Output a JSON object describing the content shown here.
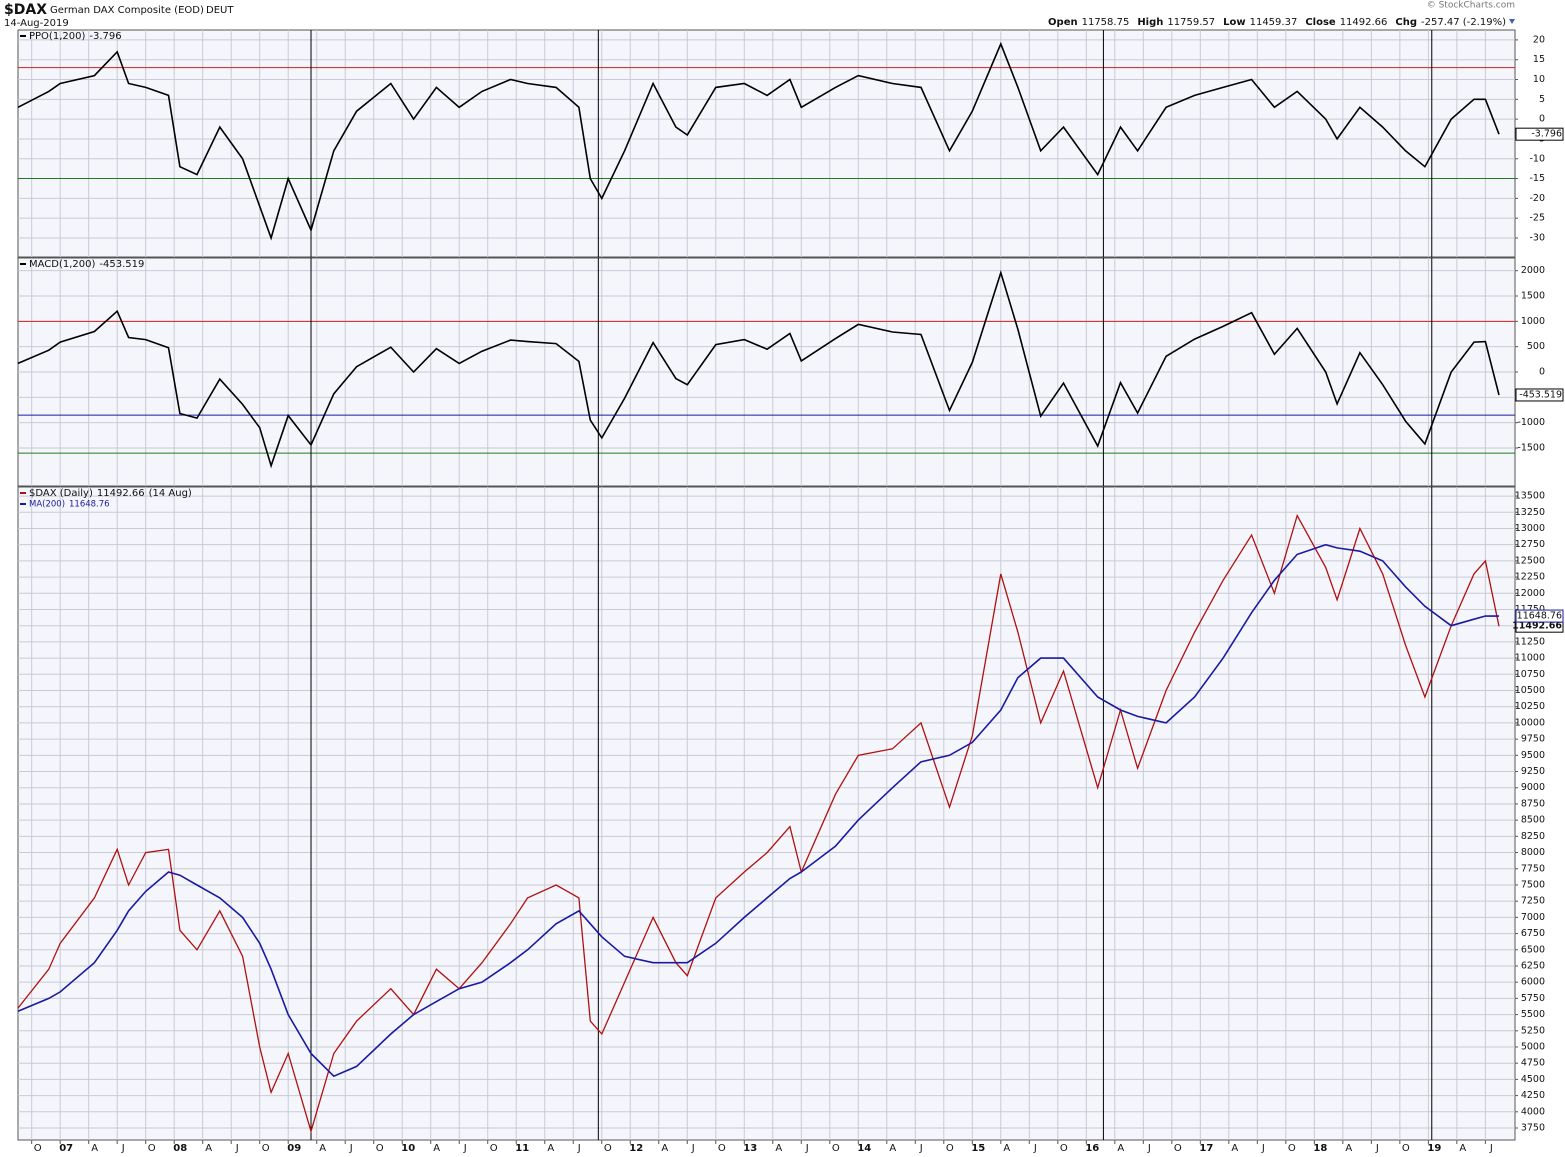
{
  "header": {
    "symbol": "$DAX",
    "name": "German DAX Composite (EOD)",
    "exchange": "DEUT",
    "date": "14-Aug-2019",
    "copyright": "© StockCharts.com",
    "quote": [
      {
        "label": "Open",
        "value": "11758.75"
      },
      {
        "label": "High",
        "value": "11759.57"
      },
      {
        "label": "Low",
        "value": "11459.37"
      },
      {
        "label": "Close",
        "value": "11492.66"
      },
      {
        "label": "Chg",
        "value": "-257.47 (-2.19%)"
      }
    ]
  },
  "chart_data": [
    {
      "type": "line",
      "x": [
        2006.63,
        2006.9,
        2007.0,
        2007.3,
        2007.5,
        2007.6,
        2007.75,
        2007.95,
        2008.05,
        2008.2,
        2008.4,
        2008.6,
        2008.75,
        2008.85,
        2009.0,
        2009.2,
        2009.4,
        2009.6,
        2009.9,
        2010.1,
        2010.3,
        2010.5,
        2010.7,
        2010.95,
        2011.1,
        2011.35,
        2011.55,
        2011.65,
        2011.75,
        2011.95,
        2012.2,
        2012.4,
        2012.5,
        2012.75,
        2013.0,
        2013.2,
        2013.4,
        2013.5,
        2013.8,
        2014.0,
        2014.3,
        2014.55,
        2014.8,
        2015.0,
        2015.25,
        2015.4,
        2015.6,
        2015.8,
        2016.1,
        2016.3,
        2016.45,
        2016.7,
        2016.95,
        2017.2,
        2017.45,
        2017.65,
        2017.85,
        2018.1,
        2018.2,
        2018.4,
        2018.6,
        2018.8,
        2018.97,
        2019.2,
        2019.4,
        2019.5,
        2019.62
      ],
      "series": [
        {
          "name": "PPO(1,200)",
          "color": "#000000",
          "values": [
            3,
            7,
            9,
            11,
            17,
            9,
            8,
            6,
            -12,
            -14,
            -2,
            -10,
            -22,
            -30,
            -15,
            -28,
            -8,
            2,
            9,
            0,
            8,
            3,
            7,
            10,
            9,
            8,
            3,
            -15,
            -20,
            -8,
            9,
            -2,
            -4,
            8,
            9,
            6,
            10,
            3,
            8,
            11,
            9,
            8,
            -8,
            2,
            19,
            8,
            -8,
            -2,
            -14,
            -2,
            -8,
            3,
            6,
            8,
            10,
            3,
            7,
            0,
            -5,
            3,
            -2,
            -8,
            -12,
            0,
            5,
            5,
            -3.796
          ]
        }
      ],
      "xlim": [
        2006.63,
        2019.76
      ],
      "ylim": [
        -34.8,
        22.5
      ],
      "yticks": [
        -30,
        -25,
        -20,
        -15,
        -10,
        -5,
        0,
        5,
        10,
        15,
        20
      ],
      "hlines": [
        {
          "value": 13,
          "color": "#d42020"
        },
        {
          "value": -15,
          "color": "#1f7a1f"
        }
      ],
      "vlines": [
        2009.2,
        2011.72,
        2016.15,
        2019.03
      ],
      "grid": true
    },
    {
      "type": "line",
      "x": [
        2006.63,
        2006.9,
        2007.0,
        2007.3,
        2007.5,
        2007.6,
        2007.75,
        2007.95,
        2008.05,
        2008.2,
        2008.4,
        2008.6,
        2008.75,
        2008.85,
        2009.0,
        2009.2,
        2009.4,
        2009.6,
        2009.9,
        2010.1,
        2010.3,
        2010.5,
        2010.7,
        2010.95,
        2011.1,
        2011.35,
        2011.55,
        2011.65,
        2011.75,
        2011.95,
        2012.2,
        2012.4,
        2012.5,
        2012.75,
        2013.0,
        2013.2,
        2013.4,
        2013.5,
        2013.8,
        2014.0,
        2014.3,
        2014.55,
        2014.8,
        2015.0,
        2015.25,
        2015.4,
        2015.6,
        2015.8,
        2016.1,
        2016.3,
        2016.45,
        2016.7,
        2016.95,
        2017.2,
        2017.45,
        2017.65,
        2017.85,
        2018.1,
        2018.2,
        2018.4,
        2018.6,
        2018.8,
        2018.97,
        2019.2,
        2019.4,
        2019.5,
        2019.62
      ],
      "series": [
        {
          "name": "MACD(1,200)",
          "color": "#000000",
          "values": [
            170,
            430,
            590,
            800,
            1200,
            680,
            640,
            480,
            -820,
            -910,
            -140,
            -640,
            -1100,
            -1850,
            -860,
            -1440,
            -430,
            105,
            490,
            0,
            460,
            170,
            410,
            630,
            600,
            560,
            210,
            -950,
            -1300,
            -520,
            580,
            -130,
            -250,
            540,
            640,
            450,
            760,
            220,
            660,
            940,
            790,
            740,
            -760,
            190,
            1960,
            840,
            -870,
            -220,
            -1460,
            -210,
            -810,
            310,
            650,
            900,
            1170,
            350,
            860,
            0,
            -630,
            380,
            -250,
            -970,
            -1420,
            0,
            590,
            600,
            -453.519
          ]
        }
      ],
      "xlim": [
        2006.63,
        2019.76
      ],
      "ylim": [
        -2250,
        2250
      ],
      "yticks": [
        -1500,
        -1000,
        -500,
        0,
        500,
        1000,
        1500,
        2000
      ],
      "hlines": [
        {
          "value": 1000,
          "color": "#d42020"
        },
        {
          "value": -850,
          "color": "#1a1aa0"
        },
        {
          "value": -1600,
          "color": "#1f7a1f"
        }
      ],
      "vlines": [
        2009.2,
        2011.72,
        2016.15,
        2019.03
      ],
      "grid": true
    },
    {
      "type": "line",
      "x": [
        2006.63,
        2006.9,
        2007.0,
        2007.3,
        2007.5,
        2007.6,
        2007.75,
        2007.95,
        2008.05,
        2008.2,
        2008.4,
        2008.6,
        2008.75,
        2008.85,
        2009.0,
        2009.2,
        2009.4,
        2009.6,
        2009.9,
        2010.1,
        2010.3,
        2010.5,
        2010.7,
        2010.95,
        2011.1,
        2011.35,
        2011.55,
        2011.65,
        2011.75,
        2011.95,
        2012.2,
        2012.4,
        2012.5,
        2012.75,
        2013.0,
        2013.2,
        2013.4,
        2013.5,
        2013.8,
        2014.0,
        2014.3,
        2014.55,
        2014.8,
        2015.0,
        2015.25,
        2015.4,
        2015.6,
        2015.8,
        2016.1,
        2016.3,
        2016.45,
        2016.7,
        2016.95,
        2017.2,
        2017.45,
        2017.65,
        2017.85,
        2018.1,
        2018.2,
        2018.4,
        2018.6,
        2018.8,
        2018.97,
        2019.2,
        2019.4,
        2019.5,
        2019.62
      ],
      "series": [
        {
          "name": "$DAX (Daily)",
          "date_label": "(14 Aug)",
          "color": "#b01010",
          "values": [
            5600,
            6200,
            6600,
            7300,
            8050,
            7500,
            8000,
            8050,
            6800,
            6500,
            7100,
            6400,
            5000,
            4300,
            4900,
            3700,
            4900,
            5400,
            5900,
            5500,
            6200,
            5900,
            6300,
            6900,
            7300,
            7500,
            7300,
            5400,
            5200,
            6000,
            7000,
            6300,
            6100,
            7300,
            7700,
            8000,
            8400,
            7700,
            8900,
            9500,
            9600,
            10000,
            8700,
            9800,
            12300,
            11400,
            10000,
            10800,
            9000,
            10200,
            9300,
            10500,
            11400,
            12200,
            12900,
            12000,
            13200,
            12400,
            11900,
            13000,
            12300,
            11200,
            10400,
            11500,
            12300,
            12500,
            11492.66
          ]
        },
        {
          "name": "MA(200)",
          "color": "#1a1aa0",
          "values": [
            5550,
            5750,
            5850,
            6300,
            6800,
            7100,
            7400,
            7700,
            7650,
            7500,
            7300,
            7000,
            6600,
            6200,
            5500,
            4900,
            4550,
            4700,
            5200,
            5500,
            5700,
            5900,
            6000,
            6300,
            6500,
            6900,
            7100,
            6900,
            6700,
            6400,
            6300,
            6300,
            6300,
            6600,
            7000,
            7300,
            7600,
            7700,
            8100,
            8500,
            9000,
            9400,
            9500,
            9700,
            10200,
            10700,
            11000,
            11000,
            10400,
            10200,
            10100,
            10000,
            10400,
            11000,
            11700,
            12200,
            12600,
            12750,
            12700,
            12650,
            12500,
            12100,
            11800,
            11500,
            11600,
            11650,
            11648.76
          ]
        }
      ],
      "xlim": [
        2006.63,
        2019.76
      ],
      "ylim": [
        3565,
        13640
      ],
      "yticks": [
        3750,
        4000,
        4250,
        4500,
        4750,
        5000,
        5250,
        5500,
        5750,
        6000,
        6250,
        6500,
        6750,
        7000,
        7250,
        7500,
        7750,
        8000,
        8250,
        8500,
        8750,
        9000,
        9250,
        9500,
        9750,
        10000,
        10250,
        10500,
        10750,
        11000,
        11250,
        11500,
        11750,
        12000,
        12250,
        12500,
        12750,
        13000,
        13250,
        13500
      ],
      "xticks": [
        {
          "value": 2006.75,
          "label": "O"
        },
        {
          "value": 2007,
          "label": "07"
        },
        {
          "value": 2007.25,
          "label": "A"
        },
        {
          "value": 2007.5,
          "label": "J"
        },
        {
          "value": 2007.75,
          "label": "O"
        },
        {
          "value": 2008,
          "label": "08"
        },
        {
          "value": 2008.25,
          "label": "A"
        },
        {
          "value": 2008.5,
          "label": "J"
        },
        {
          "value": 2008.75,
          "label": "O"
        },
        {
          "value": 2009,
          "label": "09"
        },
        {
          "value": 2009.25,
          "label": "A"
        },
        {
          "value": 2009.5,
          "label": "J"
        },
        {
          "value": 2009.75,
          "label": "O"
        },
        {
          "value": 2010,
          "label": "10"
        },
        {
          "value": 2010.25,
          "label": "A"
        },
        {
          "value": 2010.5,
          "label": "J"
        },
        {
          "value": 2010.75,
          "label": "O"
        },
        {
          "value": 2011,
          "label": "11"
        },
        {
          "value": 2011.25,
          "label": "A"
        },
        {
          "value": 2011.5,
          "label": "J"
        },
        {
          "value": 2011.75,
          "label": "O"
        },
        {
          "value": 2012,
          "label": "12"
        },
        {
          "value": 2012.25,
          "label": "A"
        },
        {
          "value": 2012.5,
          "label": "J"
        },
        {
          "value": 2012.75,
          "label": "O"
        },
        {
          "value": 2013,
          "label": "13"
        },
        {
          "value": 2013.25,
          "label": "A"
        },
        {
          "value": 2013.5,
          "label": "J"
        },
        {
          "value": 2013.75,
          "label": "O"
        },
        {
          "value": 2014,
          "label": "14"
        },
        {
          "value": 2014.25,
          "label": "A"
        },
        {
          "value": 2014.5,
          "label": "J"
        },
        {
          "value": 2014.75,
          "label": "O"
        },
        {
          "value": 2015,
          "label": "15"
        },
        {
          "value": 2015.25,
          "label": "A"
        },
        {
          "value": 2015.5,
          "label": "J"
        },
        {
          "value": 2015.75,
          "label": "O"
        },
        {
          "value": 2016,
          "label": "16"
        },
        {
          "value": 2016.25,
          "label": "A"
        },
        {
          "value": 2016.5,
          "label": "J"
        },
        {
          "value": 2016.75,
          "label": "O"
        },
        {
          "value": 2017,
          "label": "17"
        },
        {
          "value": 2017.25,
          "label": "A"
        },
        {
          "value": 2017.5,
          "label": "J"
        },
        {
          "value": 2017.75,
          "label": "O"
        },
        {
          "value": 2018,
          "label": "18"
        },
        {
          "value": 2018.25,
          "label": "A"
        },
        {
          "value": 2018.5,
          "label": "J"
        },
        {
          "value": 2018.75,
          "label": "O"
        },
        {
          "value": 2019,
          "label": "19"
        },
        {
          "value": 2019.25,
          "label": "A"
        },
        {
          "value": 2019.5,
          "label": "J"
        }
      ],
      "vlines": [
        2009.2,
        2011.72,
        2016.15,
        2019.03
      ],
      "grid": true
    }
  ]
}
